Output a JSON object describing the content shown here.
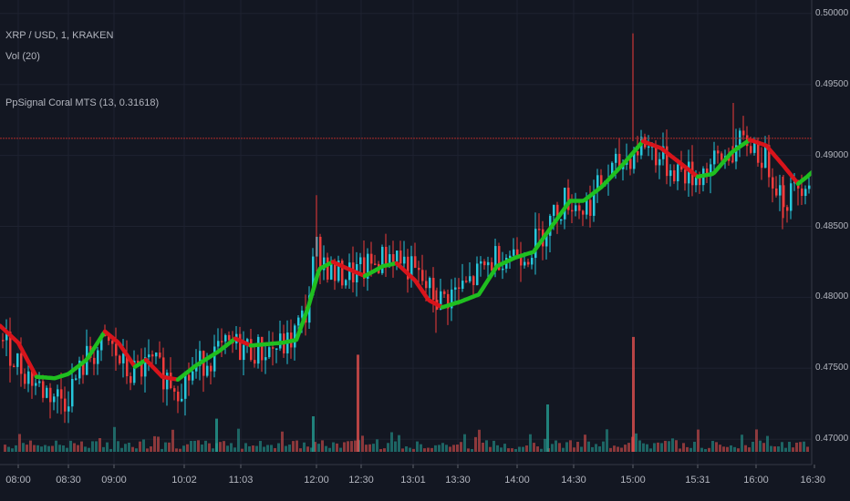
{
  "legend": {
    "symbol": "XRP / USD, 1, KRAKEN",
    "volume": "Vol (20)",
    "indicator": "PpSignal Coral MTS (13, 0.31618)"
  },
  "colors": {
    "background": "#131722",
    "bull_candle": "#26c6da",
    "bear_candle": "#ef3b3b",
    "coral_up": "#1fbf1f",
    "coral_down": "#d8141b",
    "vol_up": "#26a69a",
    "vol_down": "#ef5350",
    "hline": "#b22b2b"
  },
  "chart_data": {
    "type": "candlestick",
    "title": "XRP / USD, 1, KRAKEN",
    "ylim": [
      0.4695,
      0.5005
    ],
    "y_ticks": [
      "0.50000",
      "0.49500",
      "0.49000",
      "0.48500",
      "0.48000",
      "0.47500",
      "0.47000"
    ],
    "x_ticks": [
      "08:00",
      "08:30",
      "09:00",
      "10:02",
      "11:03",
      "12:00",
      "12:30",
      "13:01",
      "13:30",
      "14:00",
      "14:30",
      "15:00",
      "15:31",
      "16:00",
      "16:30"
    ],
    "horizontal_line": 0.4912,
    "price_path": [
      [
        0,
        0.4772
      ],
      [
        20,
        0.4752
      ],
      [
        45,
        0.4735
      ],
      [
        70,
        0.4728
      ],
      [
        95,
        0.4758
      ],
      [
        118,
        0.4767
      ],
      [
        140,
        0.4745
      ],
      [
        165,
        0.4753
      ],
      [
        195,
        0.4737
      ],
      [
        225,
        0.4757
      ],
      [
        255,
        0.4766
      ],
      [
        285,
        0.4762
      ],
      [
        315,
        0.4767
      ],
      [
        335,
        0.479
      ],
      [
        345,
        0.4835
      ],
      [
        365,
        0.4815
      ],
      [
        395,
        0.4818
      ],
      [
        430,
        0.4832
      ],
      [
        460,
        0.4812
      ],
      [
        480,
        0.4797
      ],
      [
        510,
        0.4808
      ],
      [
        545,
        0.483
      ],
      [
        580,
        0.4833
      ],
      [
        600,
        0.4852
      ],
      [
        620,
        0.487
      ],
      [
        640,
        0.4862
      ],
      [
        660,
        0.4882
      ],
      [
        690,
        0.49
      ],
      [
        705,
        0.491
      ],
      [
        730,
        0.4893
      ],
      [
        760,
        0.4885
      ],
      [
        790,
        0.4897
      ],
      [
        805,
        0.4905
      ],
      [
        820,
        0.491
      ],
      [
        840,
        0.4895
      ],
      [
        860,
        0.4868
      ],
      [
        875,
        0.488
      ],
      [
        900,
        0.4895
      ]
    ],
    "coral": [
      [
        0,
        0.478
      ],
      [
        20,
        0.4768
      ],
      [
        40,
        0.4744
      ],
      [
        60,
        0.4743
      ],
      [
        75,
        0.4746
      ],
      [
        95,
        0.4756
      ],
      [
        115,
        0.4776
      ],
      [
        130,
        0.4768
      ],
      [
        148,
        0.4751
      ],
      [
        160,
        0.4756
      ],
      [
        178,
        0.4744
      ],
      [
        195,
        0.4742
      ],
      [
        215,
        0.4752
      ],
      [
        240,
        0.4762
      ],
      [
        258,
        0.4771
      ],
      [
        275,
        0.4766
      ],
      [
        292,
        0.4767
      ],
      [
        310,
        0.4768
      ],
      [
        325,
        0.477
      ],
      [
        338,
        0.4793
      ],
      [
        350,
        0.482
      ],
      [
        365,
        0.4825
      ],
      [
        382,
        0.482
      ],
      [
        400,
        0.4815
      ],
      [
        420,
        0.4822
      ],
      [
        435,
        0.4824
      ],
      [
        455,
        0.4812
      ],
      [
        470,
        0.4798
      ],
      [
        485,
        0.4793
      ],
      [
        505,
        0.4797
      ],
      [
        525,
        0.4802
      ],
      [
        545,
        0.4822
      ],
      [
        565,
        0.4828
      ],
      [
        585,
        0.4832
      ],
      [
        605,
        0.485
      ],
      [
        625,
        0.4868
      ],
      [
        640,
        0.4868
      ],
      [
        660,
        0.4878
      ],
      [
        685,
        0.4895
      ],
      [
        705,
        0.491
      ],
      [
        725,
        0.4905
      ],
      [
        745,
        0.4895
      ],
      [
        765,
        0.4885
      ],
      [
        782,
        0.4887
      ],
      [
        802,
        0.4902
      ],
      [
        822,
        0.4911
      ],
      [
        840,
        0.4907
      ],
      [
        860,
        0.4892
      ],
      [
        875,
        0.488
      ],
      [
        885,
        0.4885
      ],
      [
        897,
        0.4892
      ]
    ],
    "coral_segments": [
      {
        "from": 0,
        "to": 40,
        "trend": "down"
      },
      {
        "from": 40,
        "to": 115,
        "trend": "up"
      },
      {
        "from": 115,
        "to": 148,
        "trend": "down"
      },
      {
        "from": 148,
        "to": 160,
        "trend": "up"
      },
      {
        "from": 160,
        "to": 195,
        "trend": "down"
      },
      {
        "from": 195,
        "to": 258,
        "trend": "up"
      },
      {
        "from": 258,
        "to": 275,
        "trend": "down"
      },
      {
        "from": 275,
        "to": 365,
        "trend": "up"
      },
      {
        "from": 365,
        "to": 400,
        "trend": "down"
      },
      {
        "from": 400,
        "to": 435,
        "trend": "up"
      },
      {
        "from": 435,
        "to": 485,
        "trend": "down"
      },
      {
        "from": 485,
        "to": 705,
        "trend": "up"
      },
      {
        "from": 705,
        "to": 765,
        "trend": "down"
      },
      {
        "from": 765,
        "to": 822,
        "trend": "up"
      },
      {
        "from": 822,
        "to": 875,
        "trend": "down"
      },
      {
        "from": 875,
        "to": 897,
        "trend": "up"
      }
    ],
    "spikes": [
      {
        "x": 347,
        "high": 0.4872,
        "low": 0.4818
      },
      {
        "x": 694,
        "high": 0.4986,
        "low": 0.491
      },
      {
        "x": 804,
        "high": 0.4937,
        "low": 0.4895
      },
      {
        "x": 858,
        "high": 0.4885,
        "low": 0.4848
      },
      {
        "x": 478,
        "high": 0.4805,
        "low": 0.4775
      }
    ],
    "volume_spikes": [
      {
        "x": 694,
        "h": 0.97
      },
      {
        "x": 392,
        "h": 0.82
      },
      {
        "x": 237,
        "h": 0.28
      },
      {
        "x": 343,
        "h": 0.3
      },
      {
        "x": 600,
        "h": 0.4
      }
    ]
  }
}
